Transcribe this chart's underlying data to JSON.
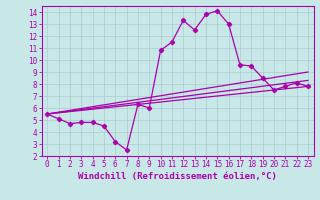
{
  "background_color": "#c8e8e8",
  "line_color": "#aa00aa",
  "grid_color": "#aacccc",
  "xlabel": "Windchill (Refroidissement éolien,°C)",
  "xlabel_fontsize": 6.5,
  "xlim": [
    -0.5,
    23.5
  ],
  "ylim": [
    2,
    14.5
  ],
  "xticks": [
    0,
    1,
    2,
    3,
    4,
    5,
    6,
    7,
    8,
    9,
    10,
    11,
    12,
    13,
    14,
    15,
    16,
    17,
    18,
    19,
    20,
    21,
    22,
    23
  ],
  "yticks": [
    2,
    3,
    4,
    5,
    6,
    7,
    8,
    9,
    10,
    11,
    12,
    13,
    14
  ],
  "tick_fontsize": 5.5,
  "main_series": {
    "x": [
      0,
      1,
      2,
      3,
      4,
      5,
      6,
      7,
      8,
      9,
      10,
      11,
      12,
      13,
      14,
      15,
      16,
      17,
      18,
      19,
      20,
      21,
      22,
      23
    ],
    "y": [
      5.5,
      5.1,
      4.7,
      4.8,
      4.8,
      4.5,
      3.2,
      2.5,
      6.3,
      6.0,
      10.8,
      11.5,
      13.3,
      12.5,
      13.8,
      14.1,
      13.0,
      9.6,
      9.5,
      8.5,
      7.5,
      7.8,
      8.1,
      7.8
    ]
  },
  "ref_lines": [
    {
      "x": [
        0,
        23
      ],
      "y": [
        5.5,
        7.8
      ]
    },
    {
      "x": [
        0,
        23
      ],
      "y": [
        5.5,
        8.3
      ]
    },
    {
      "x": [
        0,
        23
      ],
      "y": [
        5.5,
        9.0
      ]
    }
  ]
}
